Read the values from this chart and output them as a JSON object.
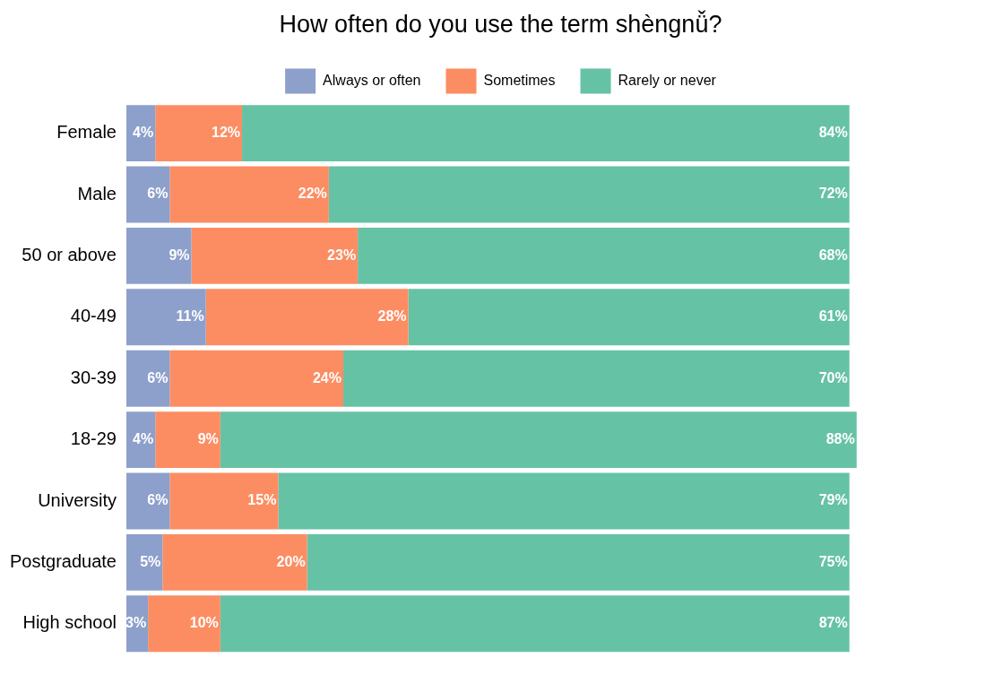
{
  "chart_data": {
    "type": "bar",
    "title": "How often do you use the term shèngnǚ?",
    "orientation": "horizontal",
    "stacked": true,
    "legend": "top",
    "grid": false,
    "tick_labels": "y",
    "categories": [
      "Female",
      "Male",
      "50 or above",
      "40-49",
      "30-39",
      "18-29",
      "University",
      "Postgraduate",
      "High school"
    ],
    "series": [
      {
        "name": "Always or often",
        "color": "#8da0cb",
        "values": [
          4,
          6,
          9,
          11,
          6,
          4,
          6,
          5,
          3
        ],
        "value_labels": [
          "4%",
          "6%",
          "9%",
          "11%",
          "6%",
          "4%",
          "6%",
          "5%",
          "3%"
        ]
      },
      {
        "name": "Sometimes",
        "color": "#fc8d62",
        "values": [
          12,
          22,
          23,
          28,
          24,
          9,
          15,
          20,
          10
        ],
        "value_labels": [
          "12%",
          "22%",
          "23%",
          "28%",
          "24%",
          "9%",
          "15%",
          "20%",
          "10%"
        ]
      },
      {
        "name": "Rarely or never",
        "color": "#66c2a5",
        "values": [
          84,
          72,
          68,
          61,
          70,
          88,
          79,
          75,
          87
        ],
        "value_labels": [
          "84%",
          "72%",
          "68%",
          "61%",
          "70%",
          "88%",
          "79%",
          "75%",
          "87%"
        ]
      }
    ]
  }
}
